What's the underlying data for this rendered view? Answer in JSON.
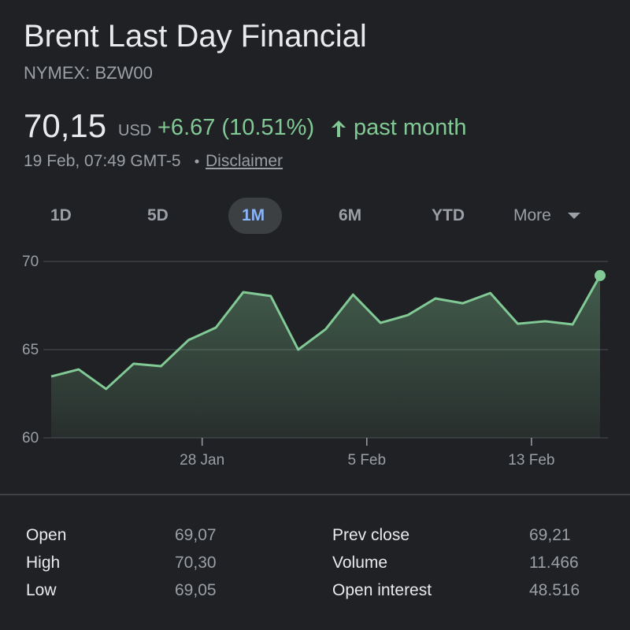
{
  "header": {
    "title": "Brent Last Day Financial",
    "subtitle": "NYMEX: BZW00"
  },
  "quote": {
    "price": "70,15",
    "currency": "USD",
    "change": "+6.67 (10.51%)",
    "period": "past month",
    "timestamp": "19 Feb, 07:49 GMT-5",
    "disclaimer": "Disclaimer"
  },
  "tabs": [
    "1D",
    "5D",
    "1M",
    "6M",
    "YTD",
    "More"
  ],
  "chart_data": {
    "type": "area",
    "color": "#81c995",
    "x": [
      0,
      1,
      2,
      3,
      4,
      5,
      6,
      7,
      8,
      9,
      10,
      11,
      12,
      13,
      14,
      15,
      16,
      17,
      18,
      19,
      20
    ],
    "values": [
      63.48,
      63.88,
      62.77,
      64.2,
      64.06,
      65.54,
      66.25,
      68.26,
      68.04,
      65.0,
      66.16,
      68.12,
      66.52,
      66.96,
      67.9,
      67.63,
      68.21,
      66.47,
      66.61,
      66.43,
      69.2
    ],
    "xlim": [
      0,
      20
    ],
    "xticks": [
      {
        "value": 5.5,
        "label": "28 Jan"
      },
      {
        "value": 11.5,
        "label": "5 Feb"
      },
      {
        "value": 17.5,
        "label": "13 Feb"
      }
    ],
    "ylim": [
      60,
      70
    ],
    "yticks": [
      60,
      65,
      70
    ],
    "grid": true
  },
  "stats": {
    "rows": [
      [
        "Open",
        "69,07",
        "Prev close",
        "69,21"
      ],
      [
        "High",
        "70,30",
        "Volume",
        "11.466"
      ],
      [
        "Low",
        "69,05",
        "Open interest",
        "48.516"
      ]
    ]
  }
}
